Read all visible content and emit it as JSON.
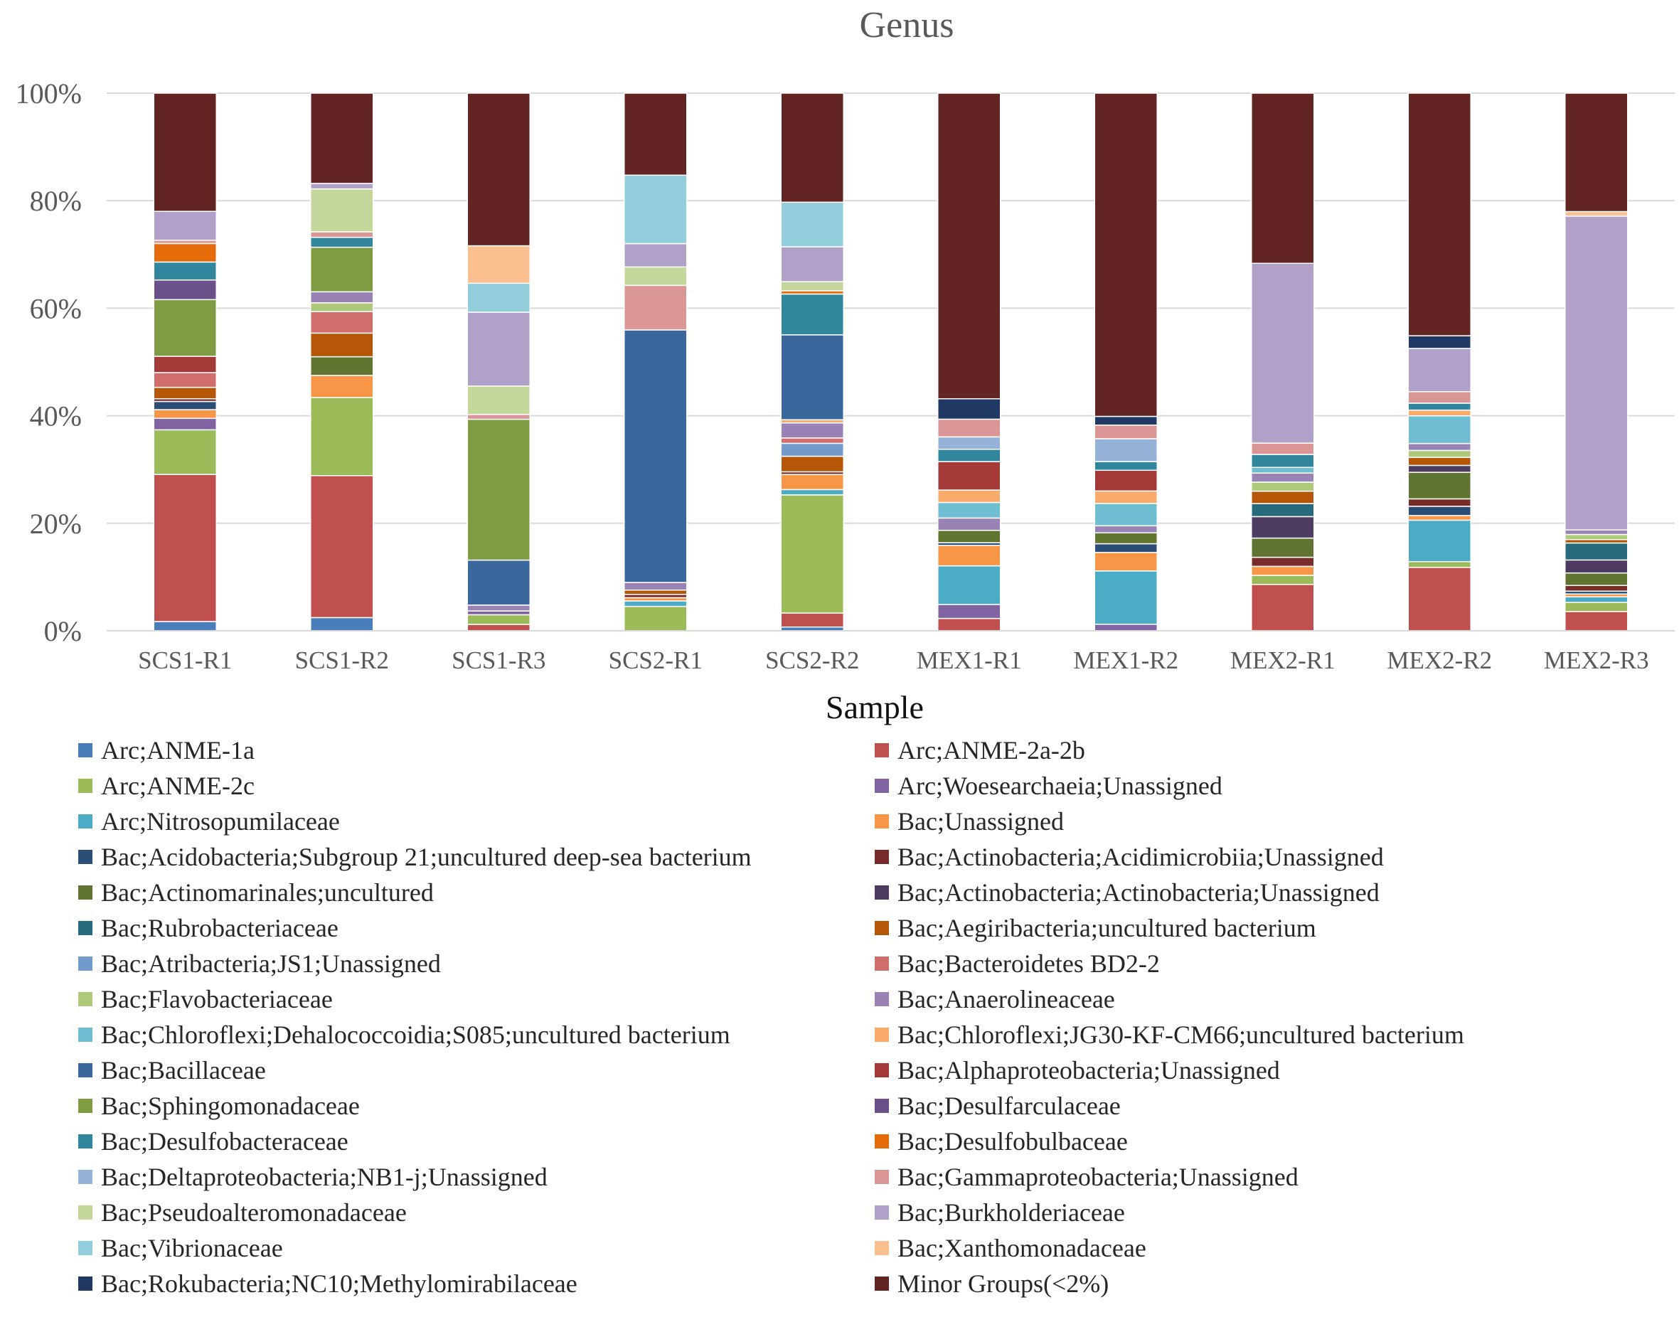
{
  "chart_data": {
    "type": "bar",
    "stacked": true,
    "title": "Genus",
    "xlabel": "Sample",
    "ylabel": "",
    "ylim": [
      0,
      100
    ],
    "yticks": [
      "0%",
      "20%",
      "40%",
      "60%",
      "80%",
      "100%"
    ],
    "legend_position": "bottom",
    "categories": [
      "SCS1-R1",
      "SCS1-R2",
      "SCS1-R3",
      "SCS2-R1",
      "SCS2-R2",
      "MEX1-R1",
      "MEX1-R2",
      "MEX2-R1",
      "MEX2-R2",
      "MEX2-R3"
    ],
    "series": [
      {
        "name": "Arc;ANME-1a",
        "color": "#4a7ebb",
        "values": [
          1.7,
          2.4,
          0,
          0,
          0.7,
          0,
          0,
          0,
          0,
          0
        ]
      },
      {
        "name": "Arc;ANME-2a-2b",
        "color": "#c0504d",
        "values": [
          27,
          25.8,
          1.2,
          0,
          2.6,
          2.3,
          0,
          8.2,
          11,
          3.4
        ]
      },
      {
        "name": "Arc;ANME-2c",
        "color": "#9bbb59",
        "values": [
          8.2,
          14.2,
          1.8,
          4.5,
          22,
          0,
          0,
          1.6,
          1,
          1.6
        ]
      },
      {
        "name": "Arc;Woesearchaeia;Unassigned",
        "color": "#8064a2",
        "values": [
          2.1,
          0,
          0.7,
          0,
          0,
          2.6,
          1.2,
          0,
          0,
          0
        ]
      },
      {
        "name": "Arc;Nitrosopumilaceae",
        "color": "#4bacc6",
        "values": [
          0,
          0,
          0,
          1,
          1,
          7.2,
          9.8,
          0,
          7.2,
          1
        ]
      },
      {
        "name": "Bac;Unassigned",
        "color": "#f79646",
        "values": [
          1.6,
          4,
          0,
          0.6,
          2.8,
          3.8,
          3.4,
          1.6,
          0.8,
          0.5
        ]
      },
      {
        "name": "Bac;Acidobacteria;Subgroup 21;uncultured deep-sea bacterium",
        "color": "#2c4d75",
        "values": [
          1.5,
          0,
          0,
          0,
          0,
          0.5,
          1.6,
          0,
          1.6,
          0.5
        ]
      },
      {
        "name": "Bac;Actinobacteria;Acidimicrobiia;Unassigned",
        "color": "#772c2a",
        "values": [
          0.5,
          0,
          0,
          0.6,
          0.5,
          0,
          0,
          1.6,
          1.3,
          1
        ]
      },
      {
        "name": "Bac;Actinomarinales;uncultured",
        "color": "#5f7530",
        "values": [
          0,
          3.4,
          0,
          0,
          0,
          2.3,
          2,
          3.4,
          4.6,
          2.2
        ]
      },
      {
        "name": "Bac;Actinobacteria;Actinobacteria;Unassigned",
        "color": "#4d3b62",
        "values": [
          0,
          0,
          0,
          0,
          0,
          0,
          0,
          3.8,
          1.2,
          2.3
        ]
      },
      {
        "name": "Bac;Rubrobacteriaceae",
        "color": "#276a7c",
        "values": [
          0,
          0,
          0,
          0,
          0,
          0,
          0,
          2.3,
          0,
          3
        ]
      },
      {
        "name": "Bac;Aegiribacteria;uncultured bacterium",
        "color": "#b65708",
        "values": [
          2.1,
          4.3,
          0,
          0.8,
          2.9,
          0,
          0,
          2.2,
          1.4,
          0.6
        ]
      },
      {
        "name": "Bac;Atribacteria;JS1;Unassigned",
        "color": "#729aca",
        "values": [
          0,
          0,
          0,
          0,
          2.4,
          0,
          0,
          0,
          0,
          0
        ]
      },
      {
        "name": "Bac;Bacteroidetes BD2-2",
        "color": "#d16e6b",
        "values": [
          2.7,
          3.9,
          0,
          0,
          1,
          0,
          0,
          0,
          0,
          0
        ]
      },
      {
        "name": "Bac;Flavobacteriaceae",
        "color": "#afc97a",
        "values": [
          0,
          1.6,
          0,
          0,
          0,
          0,
          0,
          1.6,
          1.2,
          0.9
        ]
      },
      {
        "name": "Bac;Anaerolineaceae",
        "color": "#9983b5",
        "values": [
          0,
          2,
          1.1,
          1.4,
          2.8,
          2.3,
          1.3,
          1.6,
          1.2,
          0.8
        ]
      },
      {
        "name": "Bac;Chloroflexi;Dehalococcoidia;S085;uncultured bacterium",
        "color": "#6fbdd1",
        "values": [
          0,
          0,
          0,
          0,
          0,
          2.9,
          4.1,
          1,
          4.8,
          0
        ]
      },
      {
        "name": "Bac;Chloroflexi;JG30-KF-CM66;uncultured bacterium",
        "color": "#f9ab6b",
        "values": [
          0,
          0,
          0,
          0,
          0.6,
          2.3,
          2.3,
          0,
          1,
          0
        ]
      },
      {
        "name": "Bac;Bacillaceae",
        "color": "#3a679c",
        "values": [
          0,
          0,
          8.4,
          46.5,
          15.8,
          0,
          0,
          0,
          0,
          0
        ]
      },
      {
        "name": "Bac;Alphaproteobacteria;Unassigned",
        "color": "#a33a38",
        "values": [
          3,
          0,
          0,
          0,
          0,
          5.3,
          3.8,
          0,
          0,
          0
        ]
      },
      {
        "name": "Bac;Sphingomonadaceae",
        "color": "#7f9c42",
        "values": [
          10.4,
          8.1,
          26.3,
          0,
          0,
          0,
          0,
          0,
          0,
          0
        ]
      },
      {
        "name": "Bac;Desulfarculaceae",
        "color": "#6a5189",
        "values": [
          3.6,
          0,
          0,
          0,
          0,
          0,
          0,
          0,
          0,
          0
        ]
      },
      {
        "name": "Bac;Desulfobacteraceae",
        "color": "#31859c",
        "values": [
          3.3,
          1.8,
          0,
          0,
          7.6,
          2.3,
          1.6,
          2.3,
          1.2,
          0
        ]
      },
      {
        "name": "Bac;Desulfobulbaceae",
        "color": "#e46c0a",
        "values": [
          3.4,
          0,
          0,
          0,
          0.6,
          0,
          0,
          0,
          0,
          0
        ]
      },
      {
        "name": "Bac;Deltaproteobacteria;NB1-j;Unassigned",
        "color": "#95b3d7",
        "values": [
          0,
          0,
          0,
          0,
          0,
          2.3,
          4.2,
          0,
          0,
          0
        ]
      },
      {
        "name": "Bac;Gammaproteobacteria;Unassigned",
        "color": "#da9694",
        "values": [
          0.6,
          1,
          0.9,
          8.2,
          0,
          3.3,
          2.5,
          2,
          2,
          0
        ]
      },
      {
        "name": "Bac;Pseudoalteromonadaceae",
        "color": "#c4d79b",
        "values": [
          0,
          7.8,
          5.3,
          3.4,
          1.7,
          0,
          0,
          0,
          0,
          0
        ]
      },
      {
        "name": "Bac;Burkholderiaceae",
        "color": "#b1a0c7",
        "values": [
          5.3,
          1,
          13.8,
          4.3,
          6.5,
          0,
          0,
          31.8,
          7.5,
          55.4
        ]
      },
      {
        "name": "Bac;Vibrionaceae",
        "color": "#92cddc",
        "values": [
          0,
          0,
          5.4,
          12.6,
          8.3,
          0,
          0,
          0,
          0,
          0
        ]
      },
      {
        "name": "Bac;Xanthomonadaceae",
        "color": "#fabf8f",
        "values": [
          0,
          0,
          7,
          0,
          0,
          0,
          0,
          0,
          0,
          0.8
        ]
      },
      {
        "name": "Bac;Rokubacteria;NC10;Methylomirabilaceae",
        "color": "#1f3864",
        "values": [
          0,
          0,
          0,
          0,
          0,
          3.8,
          1.6,
          0,
          2.2,
          0
        ]
      },
      {
        "name": "Minor Groups(<2%)",
        "color": "#632523",
        "values": [
          21.7,
          16.4,
          28.5,
          15.1,
          20.3,
          56.9,
          59.4,
          30.1,
          42.1,
          20.9
        ]
      }
    ]
  }
}
